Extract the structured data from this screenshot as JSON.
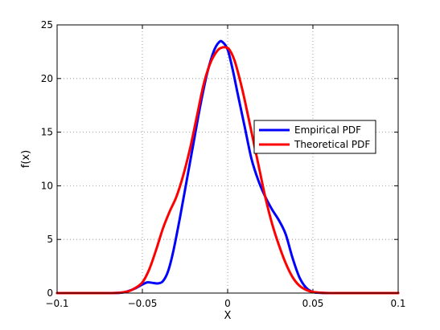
{
  "chart_data": {
    "type": "line",
    "xlabel": "X",
    "ylabel": "f(x)",
    "xlim": [
      -0.1,
      0.1
    ],
    "ylim": [
      0,
      25
    ],
    "xticks": [
      -0.1,
      -0.05,
      0,
      0.05,
      0.1
    ],
    "xtick_labels": [
      "−0.1",
      "−0.05",
      "0",
      "0.05",
      "0.1"
    ],
    "yticks": [
      0,
      5,
      10,
      15,
      20,
      25
    ],
    "ytick_labels": [
      "0",
      "5",
      "10",
      "15",
      "20",
      "25"
    ],
    "grid": true,
    "legend_position": "right",
    "series": [
      {
        "name": "Empirical PDF",
        "color": "#0000ff",
        "x": [
          -0.1,
          -0.07,
          -0.062,
          -0.058,
          -0.054,
          -0.05,
          -0.047,
          -0.044,
          -0.041,
          -0.038,
          -0.035,
          -0.032,
          -0.028,
          -0.024,
          -0.02,
          -0.016,
          -0.012,
          -0.008,
          -0.005,
          -0.003,
          0.0,
          0.003,
          0.006,
          0.01,
          0.014,
          0.018,
          0.022,
          0.026,
          0.03,
          0.034,
          0.038,
          0.042,
          0.046,
          0.05,
          0.055,
          0.06,
          0.07,
          0.1
        ],
        "y": [
          0,
          0,
          0.05,
          0.2,
          0.45,
          0.8,
          1.0,
          0.95,
          0.9,
          1.1,
          2.0,
          3.8,
          7.0,
          10.5,
          14.0,
          17.5,
          20.5,
          22.6,
          23.4,
          23.4,
          22.7,
          20.8,
          18.5,
          15.5,
          12.5,
          10.5,
          9.0,
          7.8,
          6.8,
          5.5,
          3.3,
          1.5,
          0.5,
          0.1,
          0.02,
          0,
          0,
          0
        ]
      },
      {
        "name": "Theoretical PDF",
        "color": "#ff0000",
        "x": [
          -0.1,
          -0.07,
          -0.06,
          -0.055,
          -0.05,
          -0.046,
          -0.042,
          -0.038,
          -0.034,
          -0.03,
          -0.026,
          -0.022,
          -0.018,
          -0.014,
          -0.01,
          -0.006,
          -0.003,
          -0.001,
          0.001,
          0.004,
          0.007,
          0.01,
          0.014,
          0.018,
          0.022,
          0.026,
          0.03,
          0.034,
          0.038,
          0.042,
          0.046,
          0.05,
          0.055,
          0.06,
          0.07,
          0.1
        ],
        "y": [
          0,
          0,
          0.1,
          0.4,
          1.0,
          2.2,
          4.0,
          6.0,
          7.6,
          9.0,
          11.0,
          13.5,
          16.5,
          19.5,
          21.5,
          22.6,
          22.9,
          22.9,
          22.7,
          21.7,
          20.0,
          18.0,
          15.0,
          12.0,
          9.0,
          6.5,
          4.5,
          2.8,
          1.5,
          0.7,
          0.3,
          0.1,
          0.03,
          0,
          0,
          0
        ]
      }
    ]
  }
}
